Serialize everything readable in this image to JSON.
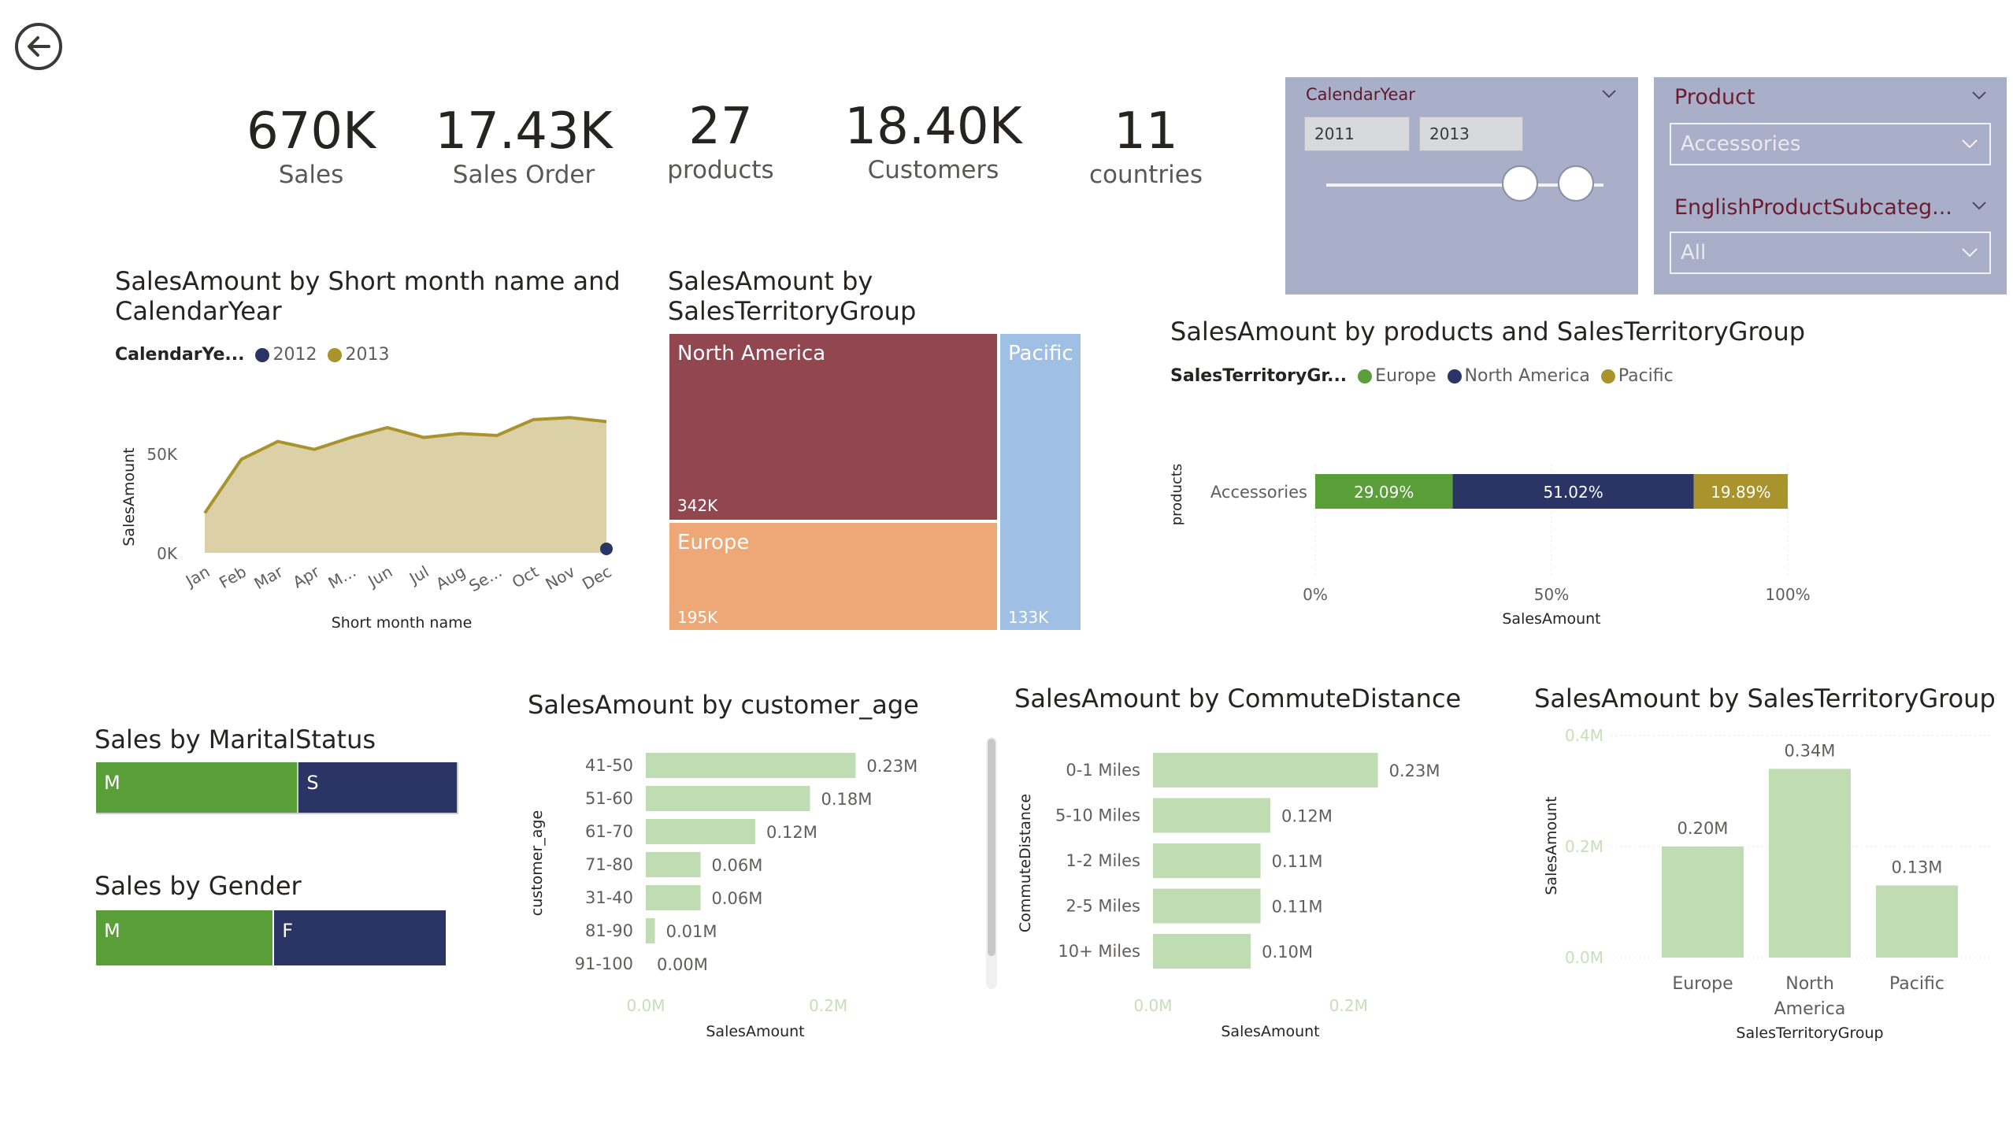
{
  "kpis": [
    {
      "value": "670K",
      "label": "Sales"
    },
    {
      "value": "17.43K",
      "label": "Sales Order"
    },
    {
      "value": "27",
      "label": "products"
    },
    {
      "value": "18.40K",
      "label": "Customers"
    },
    {
      "value": "11",
      "label": "countries"
    }
  ],
  "slicer_year": {
    "title": "CalendarYear",
    "from": "2011",
    "to": "2013",
    "range_start_fraction": 0.7,
    "range_end_fraction": 0.9
  },
  "slicer_product": {
    "title": "Product",
    "value": "Accessories",
    "sub_title": "EnglishProductSubcateg...",
    "sub_value": "All"
  },
  "colors": {
    "green": "#5a9e3a",
    "navy": "#2b3565",
    "gold": "#a8932d",
    "area": "#dcd1a6",
    "maroon": "#914650",
    "orange": "#eea877",
    "lightblue": "#9fc0e4",
    "lightgreen": "#bfdcb3",
    "slicer_bg": "#a9aec9"
  },
  "line_chart": {
    "title_line1": "SalesAmount by Short month name and",
    "title_line2": "CalendarYear",
    "legend_title": "CalendarYe...",
    "legend": [
      "2012",
      "2013"
    ],
    "ylabel": "SalesAmount",
    "xlabel": "Short month name",
    "yticks": [
      "50K",
      "0K"
    ]
  },
  "treemap": {
    "title_line1": "SalesAmount by",
    "title_line2": "SalesTerritoryGroup",
    "cells": [
      {
        "name": "North America",
        "value": "342K"
      },
      {
        "name": "Europe",
        "value": "195K"
      },
      {
        "name": "Pacific",
        "value": "133K"
      }
    ]
  },
  "stacked_chart": {
    "title": "SalesAmount by products and SalesTerritoryGroup",
    "legend_title": "SalesTerritoryGr...",
    "legend": [
      "Europe",
      "North America",
      "Pacific"
    ],
    "ylabel": "products",
    "category": "Accessories",
    "segments": [
      "29.09%",
      "51.02%",
      "19.89%"
    ],
    "xticks": [
      "0%",
      "50%",
      "100%"
    ],
    "xlabel": "SalesAmount"
  },
  "marital": {
    "title": "Sales by MaritalStatus",
    "labels": [
      "M",
      "S"
    ]
  },
  "gender": {
    "title": "Sales by Gender",
    "labels": [
      "M",
      "F"
    ]
  },
  "age_chart": {
    "title": "SalesAmount by customer_age",
    "ylabel": "customer_age",
    "xlabel": "SalesAmount",
    "xticks": [
      "0.0M",
      "0.2M"
    ]
  },
  "commute_chart": {
    "title": "SalesAmount by CommuteDistance",
    "ylabel": "CommuteDistance",
    "xlabel": "SalesAmount",
    "xticks": [
      "0.0M",
      "0.2M"
    ]
  },
  "territory_chart": {
    "title": "SalesAmount by SalesTerritoryGroup",
    "ylabel": "SalesAmount",
    "xlabel": "SalesTerritoryGroup",
    "yticks": [
      "0.4M",
      "0.2M",
      "0.0M"
    ],
    "cat_labels": [
      "Europe",
      "North",
      "America",
      "Pacific"
    ]
  },
  "chart_data": [
    {
      "type": "area",
      "title": "SalesAmount by Short month name and CalendarYear",
      "xlabel": "Short month name",
      "ylabel": "SalesAmount",
      "categories": [
        "Jan",
        "Feb",
        "Mar",
        "Apr",
        "M...",
        "Jun",
        "Jul",
        "Aug",
        "Se...",
        "Oct",
        "Nov",
        "Dec"
      ],
      "ylim": [
        0,
        80000
      ],
      "series": [
        {
          "name": "2013",
          "values": [
            20000,
            47000,
            56000,
            52000,
            58000,
            63000,
            58000,
            60000,
            59000,
            67000,
            68000,
            66000
          ]
        },
        {
          "name": "2012",
          "values": [
            null,
            null,
            null,
            null,
            null,
            null,
            null,
            null,
            null,
            null,
            null,
            2000
          ]
        }
      ]
    },
    {
      "type": "treemap",
      "title": "SalesAmount by SalesTerritoryGroup",
      "categories": [
        "North America",
        "Europe",
        "Pacific"
      ],
      "values": [
        342000,
        195000,
        133000
      ]
    },
    {
      "type": "bar",
      "title": "SalesAmount by products and SalesTerritoryGroup",
      "categories": [
        "Accessories"
      ],
      "series": [
        {
          "name": "Europe",
          "values": [
            29.09
          ]
        },
        {
          "name": "North America",
          "values": [
            51.02
          ]
        },
        {
          "name": "Pacific",
          "values": [
            19.89
          ]
        }
      ],
      "xlim": [
        0,
        100
      ]
    },
    {
      "type": "bar",
      "title": "Sales by MaritalStatus",
      "categories": [
        "M",
        "S"
      ],
      "values": [
        0.56,
        0.44
      ]
    },
    {
      "type": "bar",
      "title": "Sales by Gender",
      "categories": [
        "M",
        "F"
      ],
      "values": [
        0.505,
        0.495
      ]
    },
    {
      "type": "bar",
      "title": "SalesAmount by customer_age",
      "categories": [
        "41-50",
        "51-60",
        "61-70",
        "71-80",
        "31-40",
        "81-90",
        "91-100"
      ],
      "values": [
        0.23,
        0.18,
        0.12,
        0.06,
        0.06,
        0.01,
        0.0
      ],
      "labels": [
        "0.23M",
        "0.18M",
        "0.12M",
        "0.06M",
        "0.06M",
        "0.01M",
        "0.00M"
      ],
      "xlim": [
        0,
        0.24
      ]
    },
    {
      "type": "bar",
      "title": "SalesAmount by CommuteDistance",
      "categories": [
        "0-1 Miles",
        "5-10 Miles",
        "1-2 Miles",
        "2-5 Miles",
        "10+ Miles"
      ],
      "values": [
        0.23,
        0.12,
        0.11,
        0.11,
        0.1
      ],
      "labels": [
        "0.23M",
        "0.12M",
        "0.11M",
        "0.11M",
        "0.10M"
      ],
      "xlim": [
        0,
        0.24
      ]
    },
    {
      "type": "bar",
      "title": "SalesAmount by SalesTerritoryGroup",
      "categories": [
        "Europe",
        "North America",
        "Pacific"
      ],
      "values": [
        0.2,
        0.34,
        0.13
      ],
      "labels": [
        "0.20M",
        "0.34M",
        "0.13M"
      ],
      "ylim": [
        0,
        0.4
      ]
    }
  ]
}
